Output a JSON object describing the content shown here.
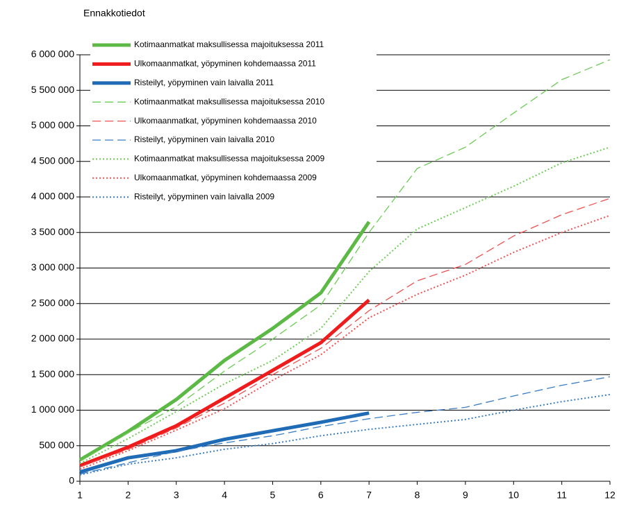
{
  "chart_data": {
    "type": "line",
    "title": "Ennakkotiedot",
    "x": [
      1,
      2,
      3,
      4,
      5,
      6,
      7,
      8,
      9,
      10,
      11,
      12
    ],
    "xlim": [
      1,
      12
    ],
    "xticks": [
      1,
      2,
      3,
      4,
      5,
      6,
      7,
      8,
      9,
      10,
      11,
      12
    ],
    "ylim": [
      0,
      6000000
    ],
    "yticks": [
      0,
      {
        "value": 500000,
        "label": "500 000"
      },
      {
        "value": 1000000,
        "label": "1 000 000"
      },
      {
        "value": 1500000,
        "label": "1 500 000"
      },
      {
        "value": 2000000,
        "label": "2 000 000"
      },
      {
        "value": 2500000,
        "label": "2 500 000"
      },
      {
        "value": 3000000,
        "label": "3 000 000"
      },
      {
        "value": 3500000,
        "label": "3 500 000"
      },
      {
        "value": 4000000,
        "label": "4 000 000"
      },
      {
        "value": 4500000,
        "label": "4 500 000"
      },
      {
        "value": 5000000,
        "label": "5 000 000"
      },
      {
        "value": 5500000,
        "label": "5 500 000"
      },
      {
        "value": 6000000,
        "label": "6 000 000"
      }
    ],
    "grid": true,
    "legend": "top-left",
    "series": [
      {
        "name": "Kotimaanmatkat maksullisessa majoituksessa 2011",
        "color": "#5cb946",
        "dash": "solid",
        "linewidth": 5,
        "values": [
          300000,
          700000,
          1150000,
          1700000,
          2150000,
          2650000,
          3650000,
          null,
          null,
          null,
          null,
          null
        ]
      },
      {
        "name": "Ulkomaanmatkat, yöpyminen kohdemaassa 2011",
        "color": "#ee1c1c",
        "dash": "solid",
        "linewidth": 5,
        "values": [
          220000,
          480000,
          780000,
          1170000,
          1560000,
          1950000,
          2550000,
          null,
          null,
          null,
          null,
          null
        ]
      },
      {
        "name": "Risteilyt, yöpyminen vain laivalla 2011",
        "color": "#1f6bb5",
        "dash": "solid",
        "linewidth": 5,
        "values": [
          130000,
          330000,
          430000,
          590000,
          710000,
          830000,
          960000,
          null,
          null,
          null,
          null,
          null
        ]
      },
      {
        "name": "Kotimaanmatkat maksullisessa majoituksessa 2010",
        "color": "#6ccb55",
        "dash": "dashed",
        "linewidth": 1.3,
        "values": [
          280000,
          680000,
          1050000,
          1550000,
          2000000,
          2480000,
          3500000,
          4400000,
          4700000,
          5180000,
          5650000,
          5930000
        ]
      },
      {
        "name": "Ulkomaanmatkat, yöpyminen kohdemaassa 2010",
        "color": "#f05050",
        "dash": "dashed",
        "linewidth": 1.3,
        "values": [
          200000,
          450000,
          750000,
          1100000,
          1500000,
          1870000,
          2400000,
          2820000,
          3050000,
          3450000,
          3750000,
          3980000
        ]
      },
      {
        "name": "Risteilyt, yöpyminen vain laivalla 2010",
        "color": "#3a7dc4",
        "dash": "dashed",
        "linewidth": 1.3,
        "values": [
          100000,
          260000,
          420000,
          540000,
          640000,
          770000,
          880000,
          970000,
          1040000,
          1200000,
          1350000,
          1470000
        ]
      },
      {
        "name": "Kotimaanmatkat maksullisessa majoituksessa 2009",
        "color": "#6ccb55",
        "dash": "dotted",
        "linewidth": 2,
        "values": [
          250000,
          600000,
          980000,
          1370000,
          1700000,
          2150000,
          2950000,
          3550000,
          3850000,
          4150000,
          4480000,
          4700000
        ]
      },
      {
        "name": "Ulkomaanmatkat, yöpyminen kohdemaassa 2009",
        "color": "#f05050",
        "dash": "dotted",
        "linewidth": 2,
        "values": [
          170000,
          430000,
          720000,
          1020000,
          1420000,
          1780000,
          2300000,
          2630000,
          2900000,
          3220000,
          3500000,
          3740000
        ]
      },
      {
        "name": "Risteilyt, yöpyminen vain laivalla 2009",
        "color": "#3a7dc4",
        "dash": "dotted",
        "linewidth": 2,
        "values": [
          90000,
          240000,
          330000,
          450000,
          530000,
          640000,
          730000,
          800000,
          870000,
          1000000,
          1120000,
          1220000
        ]
      }
    ]
  }
}
